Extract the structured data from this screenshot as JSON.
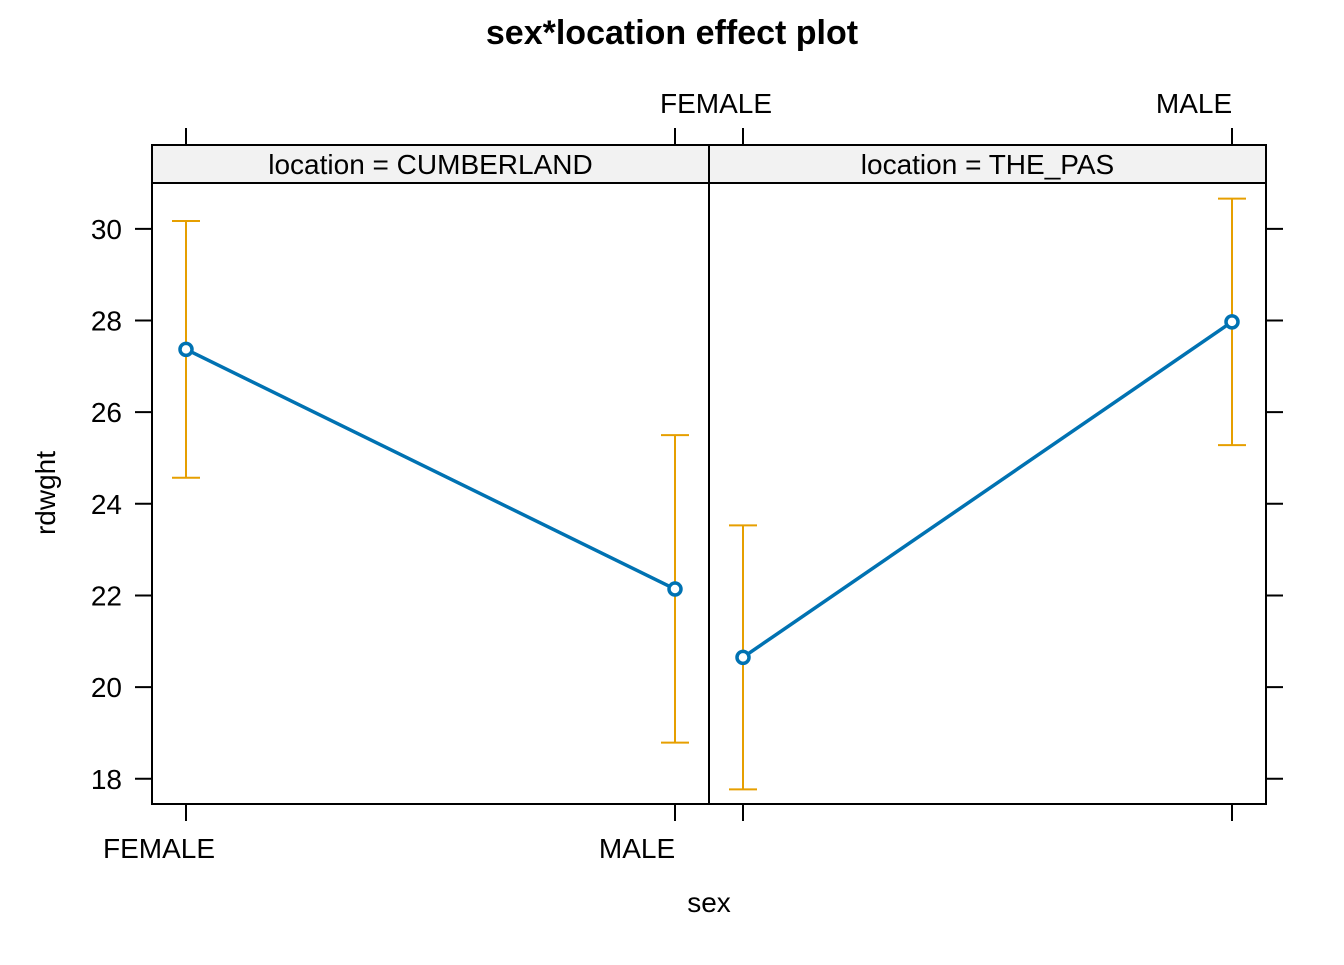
{
  "chart_data": {
    "type": "line",
    "title": "sex*location effect plot",
    "xlabel": "sex",
    "ylabel": "rdwght",
    "ylim": [
      17.45,
      31.0
    ],
    "yticks": [
      18,
      20,
      22,
      24,
      26,
      28,
      30
    ],
    "categories": [
      "FEMALE",
      "MALE"
    ],
    "panels": [
      {
        "strip": "location = CUMBERLAND",
        "fit": [
          27.37,
          22.14
        ],
        "lower": [
          24.57,
          18.79
        ],
        "upper": [
          30.17,
          25.5
        ]
      },
      {
        "strip": "location = THE_PAS",
        "fit": [
          20.65,
          27.97
        ],
        "lower": [
          17.77,
          25.28
        ],
        "upper": [
          23.53,
          30.66
        ]
      }
    ],
    "grid": false,
    "legend": "none",
    "colors": {
      "fit_line": "#0072b2",
      "error_bars": "#e69f00",
      "strip_background": "#f2f2f2",
      "axis": "#000000"
    }
  }
}
